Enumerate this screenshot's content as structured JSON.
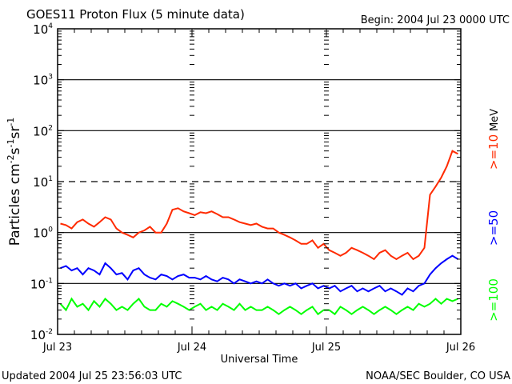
{
  "header": {
    "title": "GOES11 Proton Flux (5 minute data)",
    "begin": "Begin: 2004 Jul 23 0000 UTC"
  },
  "footer": {
    "updated": "Updated 2004 Jul 25 23:56:03 UTC",
    "source": "NOAA/SEC Boulder, CO USA"
  },
  "chart_data": {
    "type": "line",
    "title": "GOES11 Proton Flux (5 minute data)",
    "xlabel": "Universal Time",
    "ylabel": "Particles cm-2s-1sr-1",
    "yscale": "log",
    "ylim": [
      0.01,
      10000
    ],
    "xlim_hours": [
      0,
      72
    ],
    "x_tick_labels": [
      "Jul 23",
      "Jul 24",
      "Jul 25",
      "Jul 26"
    ],
    "y_tick_exponents": [
      "4",
      "3",
      "2",
      "1",
      "0",
      "-1",
      "-2"
    ],
    "grid": {
      "solid_decades": [
        3,
        2,
        0,
        -1
      ],
      "dashed_decades": [
        1
      ]
    },
    "legend_placement": "right",
    "legend_unit": "MeV",
    "x_hours_step": 1,
    "series": [
      {
        "name": ">=10",
        "color": "#ff2a00",
        "values": [
          1.5,
          1.4,
          1.2,
          1.6,
          1.8,
          1.5,
          1.3,
          1.6,
          2.0,
          1.8,
          1.2,
          1.0,
          0.9,
          0.8,
          1.0,
          1.1,
          1.3,
          1.0,
          1.0,
          1.5,
          2.8,
          3.0,
          2.6,
          2.4,
          2.2,
          2.5,
          2.4,
          2.6,
          2.3,
          2.0,
          2.0,
          1.8,
          1.6,
          1.5,
          1.4,
          1.5,
          1.3,
          1.2,
          1.2,
          1.0,
          0.9,
          0.8,
          0.7,
          0.6,
          0.6,
          0.7,
          0.5,
          0.6,
          0.45,
          0.4,
          0.35,
          0.4,
          0.5,
          0.45,
          0.4,
          0.35,
          0.3,
          0.4,
          0.45,
          0.35,
          0.3,
          0.35,
          0.4,
          0.3,
          0.35,
          0.5,
          5.5,
          8,
          12,
          20,
          40,
          35
        ]
      },
      {
        "name": ">=50",
        "color": "#0000ff",
        "values": [
          0.2,
          0.22,
          0.18,
          0.2,
          0.15,
          0.2,
          0.18,
          0.15,
          0.25,
          0.2,
          0.15,
          0.16,
          0.12,
          0.18,
          0.2,
          0.15,
          0.13,
          0.12,
          0.15,
          0.14,
          0.12,
          0.14,
          0.15,
          0.13,
          0.13,
          0.12,
          0.14,
          0.12,
          0.11,
          0.13,
          0.12,
          0.1,
          0.12,
          0.11,
          0.1,
          0.11,
          0.1,
          0.12,
          0.1,
          0.09,
          0.1,
          0.09,
          0.1,
          0.08,
          0.09,
          0.1,
          0.08,
          0.09,
          0.08,
          0.09,
          0.07,
          0.08,
          0.09,
          0.07,
          0.08,
          0.07,
          0.08,
          0.09,
          0.07,
          0.08,
          0.07,
          0.06,
          0.08,
          0.07,
          0.09,
          0.1,
          0.15,
          0.2,
          0.25,
          0.3,
          0.35,
          0.3
        ]
      },
      {
        "name": ">=100",
        "color": "#00ff00",
        "values": [
          0.04,
          0.03,
          0.05,
          0.035,
          0.04,
          0.03,
          0.045,
          0.035,
          0.05,
          0.04,
          0.03,
          0.035,
          0.03,
          0.04,
          0.05,
          0.035,
          0.03,
          0.03,
          0.04,
          0.035,
          0.045,
          0.04,
          0.035,
          0.03,
          0.035,
          0.04,
          0.03,
          0.035,
          0.03,
          0.04,
          0.035,
          0.03,
          0.04,
          0.03,
          0.035,
          0.03,
          0.03,
          0.035,
          0.03,
          0.025,
          0.03,
          0.035,
          0.03,
          0.025,
          0.03,
          0.035,
          0.025,
          0.03,
          0.03,
          0.025,
          0.035,
          0.03,
          0.025,
          0.03,
          0.035,
          0.03,
          0.025,
          0.03,
          0.035,
          0.03,
          0.025,
          0.03,
          0.035,
          0.03,
          0.04,
          0.035,
          0.04,
          0.05,
          0.04,
          0.05,
          0.045,
          0.05
        ]
      }
    ]
  }
}
